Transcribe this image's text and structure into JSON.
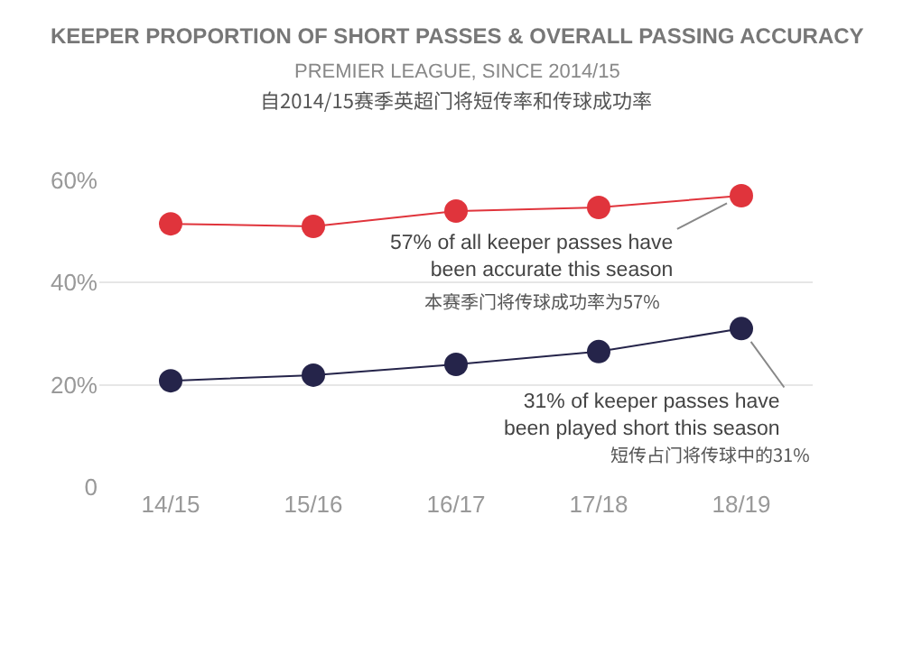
{
  "chart_data": {
    "type": "line",
    "title": "KEEPER PROPORTION OF SHORT PASSES & OVERALL PASSING ACCURACY",
    "subtitle": "PREMIER LEAGUE, SINCE 2014/15",
    "categories": [
      "14/15",
      "15/16",
      "16/17",
      "17/18",
      "18/19"
    ],
    "series": [
      {
        "color": "#e0343c",
        "values": [
          51.5,
          51,
          54,
          54.7,
          57
        ]
      },
      {
        "color": "#25244a",
        "values": [
          20.8,
          21.9,
          24,
          26.5,
          31
        ]
      }
    ],
    "annotations": [
      "自2014/15赛季英超门将短传率和传球成功率",
      {
        "text": "57% of all keeper passes have\nbeen accurate this season",
        "x": "18/19",
        "y": 57
      },
      "本赛季门将传球成功率为57%",
      {
        "text": "31% of keeper passes have\nbeen played short this season",
        "x": "18/19",
        "y": 31
      },
      "短传占门将传球中的31%"
    ],
    "ylim": [
      0,
      60
    ],
    "yticks": [
      {
        "value": 0,
        "label": "0"
      },
      {
        "value": 20,
        "label": "20%"
      },
      {
        "value": 40,
        "label": "40%"
      },
      {
        "value": 60,
        "label": "60%"
      }
    ],
    "grid": "y",
    "marker": "circle",
    "line_style": "solid"
  }
}
